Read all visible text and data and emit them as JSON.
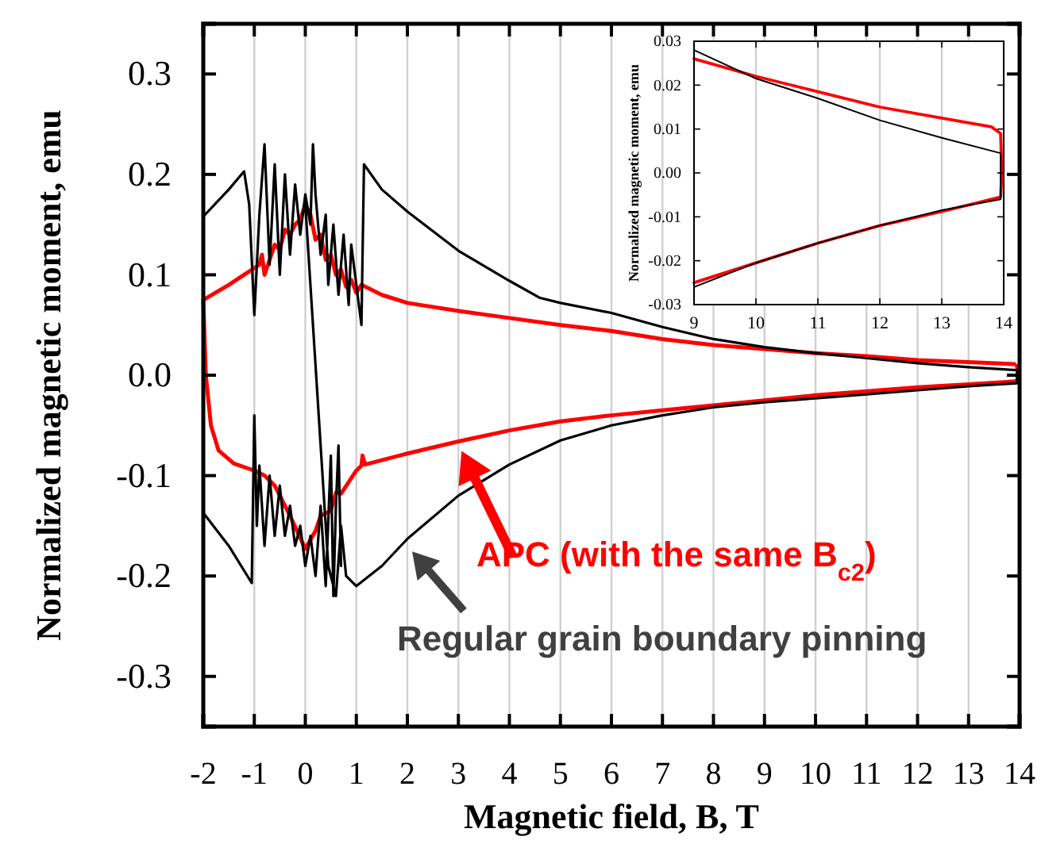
{
  "chart_data": [
    {
      "type": "line",
      "xlabel": "Magnetic field, B, T",
      "ylabel": "Normalized magnetic moment, emu",
      "xlim": [
        -2,
        14
      ],
      "ylim": [
        -0.35,
        0.35
      ],
      "xticks": [
        -2,
        -1,
        0,
        1,
        2,
        3,
        4,
        5,
        6,
        7,
        8,
        9,
        10,
        11,
        12,
        13,
        14
      ],
      "yticks": [
        -0.3,
        -0.2,
        -0.1,
        {
          "value": 0,
          "label": "0.0"
        },
        0.1,
        0.2,
        0.3
      ],
      "grid": "x",
      "series": [
        {
          "name": "Regular grain boundary pinning",
          "color": "#000000",
          "x": [
            0,
            0.45,
            0.6,
            0.7,
            0.8,
            1.0,
            1.5,
            2,
            3,
            4,
            5,
            6,
            7,
            8,
            9,
            10,
            11,
            12,
            13,
            13.95,
            13.95,
            13,
            12,
            11,
            10,
            9,
            8,
            7,
            6,
            5,
            4.6,
            4,
            3,
            2,
            1.5,
            1.15,
            1.1,
            1.0,
            0.9,
            0.85,
            0.75,
            0.65,
            0.55,
            0.45,
            0.4,
            0.3,
            0.2,
            0.15,
            0.1,
            0,
            -0.1,
            -0.2,
            -0.3,
            -0.4,
            -0.5,
            -0.6,
            -0.7,
            -0.8,
            -0.9,
            -1.0,
            -1.1,
            -1.2,
            -1.5,
            -2,
            null,
            -2,
            -1.5,
            -1.05,
            -1.0,
            -0.95,
            -0.9,
            -0.8,
            -0.7,
            -0.6,
            -0.5,
            -0.4,
            -0.3,
            -0.2,
            -0.1,
            0,
            0.1,
            0.2,
            0.3,
            0.4,
            0.5,
            0.55,
            0.6,
            0.65,
            0.7
          ],
          "values": [
            0.17,
            -0.19,
            -0.22,
            -0.15,
            -0.2,
            -0.21,
            -0.19,
            -0.163,
            -0.12,
            -0.089,
            -0.065,
            -0.05,
            -0.04,
            -0.032,
            -0.027,
            -0.023,
            -0.019,
            -0.015,
            -0.011,
            -0.008,
            0.005,
            0.008,
            0.012,
            0.017,
            0.022,
            0.028,
            0.036,
            0.048,
            0.062,
            0.072,
            0.077,
            0.094,
            0.124,
            0.163,
            0.185,
            0.21,
            0.05,
            0.09,
            0.13,
            0.07,
            0.14,
            0.08,
            0.15,
            0.09,
            0.16,
            0.12,
            0.18,
            0.23,
            0.15,
            0.18,
            0.14,
            0.19,
            0.12,
            0.2,
            0.1,
            0.21,
            0.11,
            0.23,
            0.16,
            0.06,
            0.17,
            0.203,
            0.185,
            0.158,
            null,
            -0.137,
            -0.17,
            -0.207,
            -0.04,
            -0.15,
            -0.09,
            -0.17,
            -0.1,
            -0.16,
            -0.11,
            -0.16,
            -0.13,
            -0.17,
            -0.15,
            -0.19,
            -0.16,
            -0.2,
            -0.13,
            -0.21,
            -0.08,
            -0.22,
            -0.13,
            -0.07,
            -0.19
          ]
        },
        {
          "name": "APC (with the same B$_{c2}$)",
          "color": "#ff0000",
          "x": [
            13.9,
            13,
            12,
            11,
            10,
            9,
            8,
            7,
            6,
            5,
            4,
            3,
            2,
            1.5,
            1.1,
            1.0,
            0.9,
            0.8,
            0.7,
            0.6,
            0.5,
            0.4,
            0.3,
            0.2,
            0.1,
            0,
            -0.1,
            -0.2,
            -0.3,
            -0.4,
            -0.5,
            -0.6,
            -0.7,
            -0.8,
            -0.85,
            -0.9,
            -1.2,
            -1.5,
            -2,
            -1.95,
            -1.85,
            -1.7,
            -1.4,
            -1.0,
            -0.8,
            -0.6,
            -0.3,
            0,
            0.2,
            0.3,
            0.5,
            0.6,
            0.7,
            1.0,
            1.1,
            1.12,
            1.17,
            2,
            3,
            4,
            5,
            6,
            7,
            8,
            9,
            10,
            11,
            12,
            13,
            13.95,
            13.97,
            13.95
          ],
          "values": [
            0.011,
            0.013,
            0.015,
            0.019,
            0.022,
            0.026,
            0.03,
            0.036,
            0.044,
            0.05,
            0.057,
            0.064,
            0.072,
            0.08,
            0.09,
            0.082,
            0.095,
            0.088,
            0.105,
            0.1,
            0.12,
            0.115,
            0.14,
            0.135,
            0.16,
            0.17,
            0.155,
            0.15,
            0.14,
            0.145,
            0.125,
            0.13,
            0.115,
            0.1,
            0.12,
            0.11,
            0.1,
            0.09,
            0.075,
            0.0,
            -0.05,
            -0.075,
            -0.088,
            -0.095,
            -0.1,
            -0.11,
            -0.14,
            -0.173,
            -0.155,
            -0.14,
            -0.135,
            -0.117,
            -0.118,
            -0.095,
            -0.09,
            -0.08,
            -0.089,
            -0.078,
            -0.066,
            -0.055,
            -0.046,
            -0.04,
            -0.035,
            -0.03,
            -0.025,
            -0.02,
            -0.016,
            -0.012,
            -0.009,
            -0.006,
            0.0,
            0.009
          ]
        }
      ]
    },
    {
      "type": "line",
      "ylabel": "Normalized magnetic moment, emu",
      "xlim": [
        9,
        14
      ],
      "ylim": [
        -0.03,
        0.03
      ],
      "xticks": [
        9,
        10,
        11,
        12,
        13,
        14
      ],
      "yticks": [
        -0.03,
        -0.02,
        -0.01,
        {
          "value": 0,
          "label": "0.00"
        },
        0.01,
        0.02,
        0.03
      ],
      "grid": "x",
      "series": [
        {
          "color": "#000000",
          "x": [
            9,
            10,
            11,
            12,
            13,
            13.95,
            13.95,
            13,
            12,
            11,
            10,
            9
          ],
          "values": [
            0.028,
            0.0215,
            0.017,
            0.012,
            0.008,
            0.0045,
            -0.006,
            -0.0085,
            -0.012,
            -0.016,
            -0.0205,
            -0.026
          ]
        },
        {
          "color": "#ff0000",
          "x": [
            9,
            10,
            11,
            12,
            13,
            13.8,
            13.95,
            13.97,
            13.95,
            13,
            12,
            11,
            10,
            9
          ],
          "values": [
            0.026,
            0.022,
            0.0185,
            0.015,
            0.0125,
            0.0105,
            0.009,
            0.0,
            -0.0055,
            -0.0088,
            -0.012,
            -0.016,
            -0.0205,
            -0.025
          ]
        }
      ]
    }
  ]
}
